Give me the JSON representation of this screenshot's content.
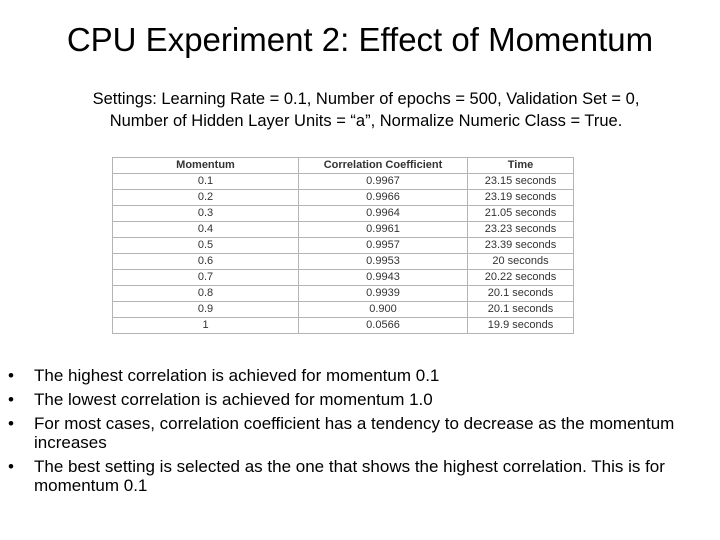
{
  "slide": {
    "title": "CPU Experiment 2: Effect of Momentum",
    "settings_line1": "Settings: Learning Rate = 0.1, Number of epochs = 500, Validation Set = 0,",
    "settings_line2": "Number of  Hidden Layer Units = “a”, Normalize Numeric Class = True."
  },
  "table": {
    "headers": [
      "Momentum",
      "Correlation Coefficient",
      "Time"
    ],
    "rows": [
      [
        "0.1",
        "0.9967",
        "23.15 seconds"
      ],
      [
        "0.2",
        "0.9966",
        "23.19 seconds"
      ],
      [
        "0.3",
        "0.9964",
        "21.05 seconds"
      ],
      [
        "0.4",
        "0.9961",
        "23.23 seconds"
      ],
      [
        "0.5",
        "0.9957",
        "23.39 seconds"
      ],
      [
        "0.6",
        "0.9953",
        "20 seconds"
      ],
      [
        "0.7",
        "0.9943",
        "20.22 seconds"
      ],
      [
        "0.8",
        "0.9939",
        "20.1 seconds"
      ],
      [
        "0.9",
        "0.900",
        "20.1 seconds"
      ],
      [
        "1",
        "0.0566",
        "19.9 seconds"
      ]
    ]
  },
  "bullets": {
    "marker": "•",
    "items": [
      "The highest correlation is achieved for momentum 0.1",
      "The lowest correlation is achieved for momentum 1.0",
      "For most cases, correlation coefficient has a tendency to decrease as the momentum increases",
      "The best setting is selected as the one that shows the highest correlation. This is for momentum 0.1"
    ]
  }
}
